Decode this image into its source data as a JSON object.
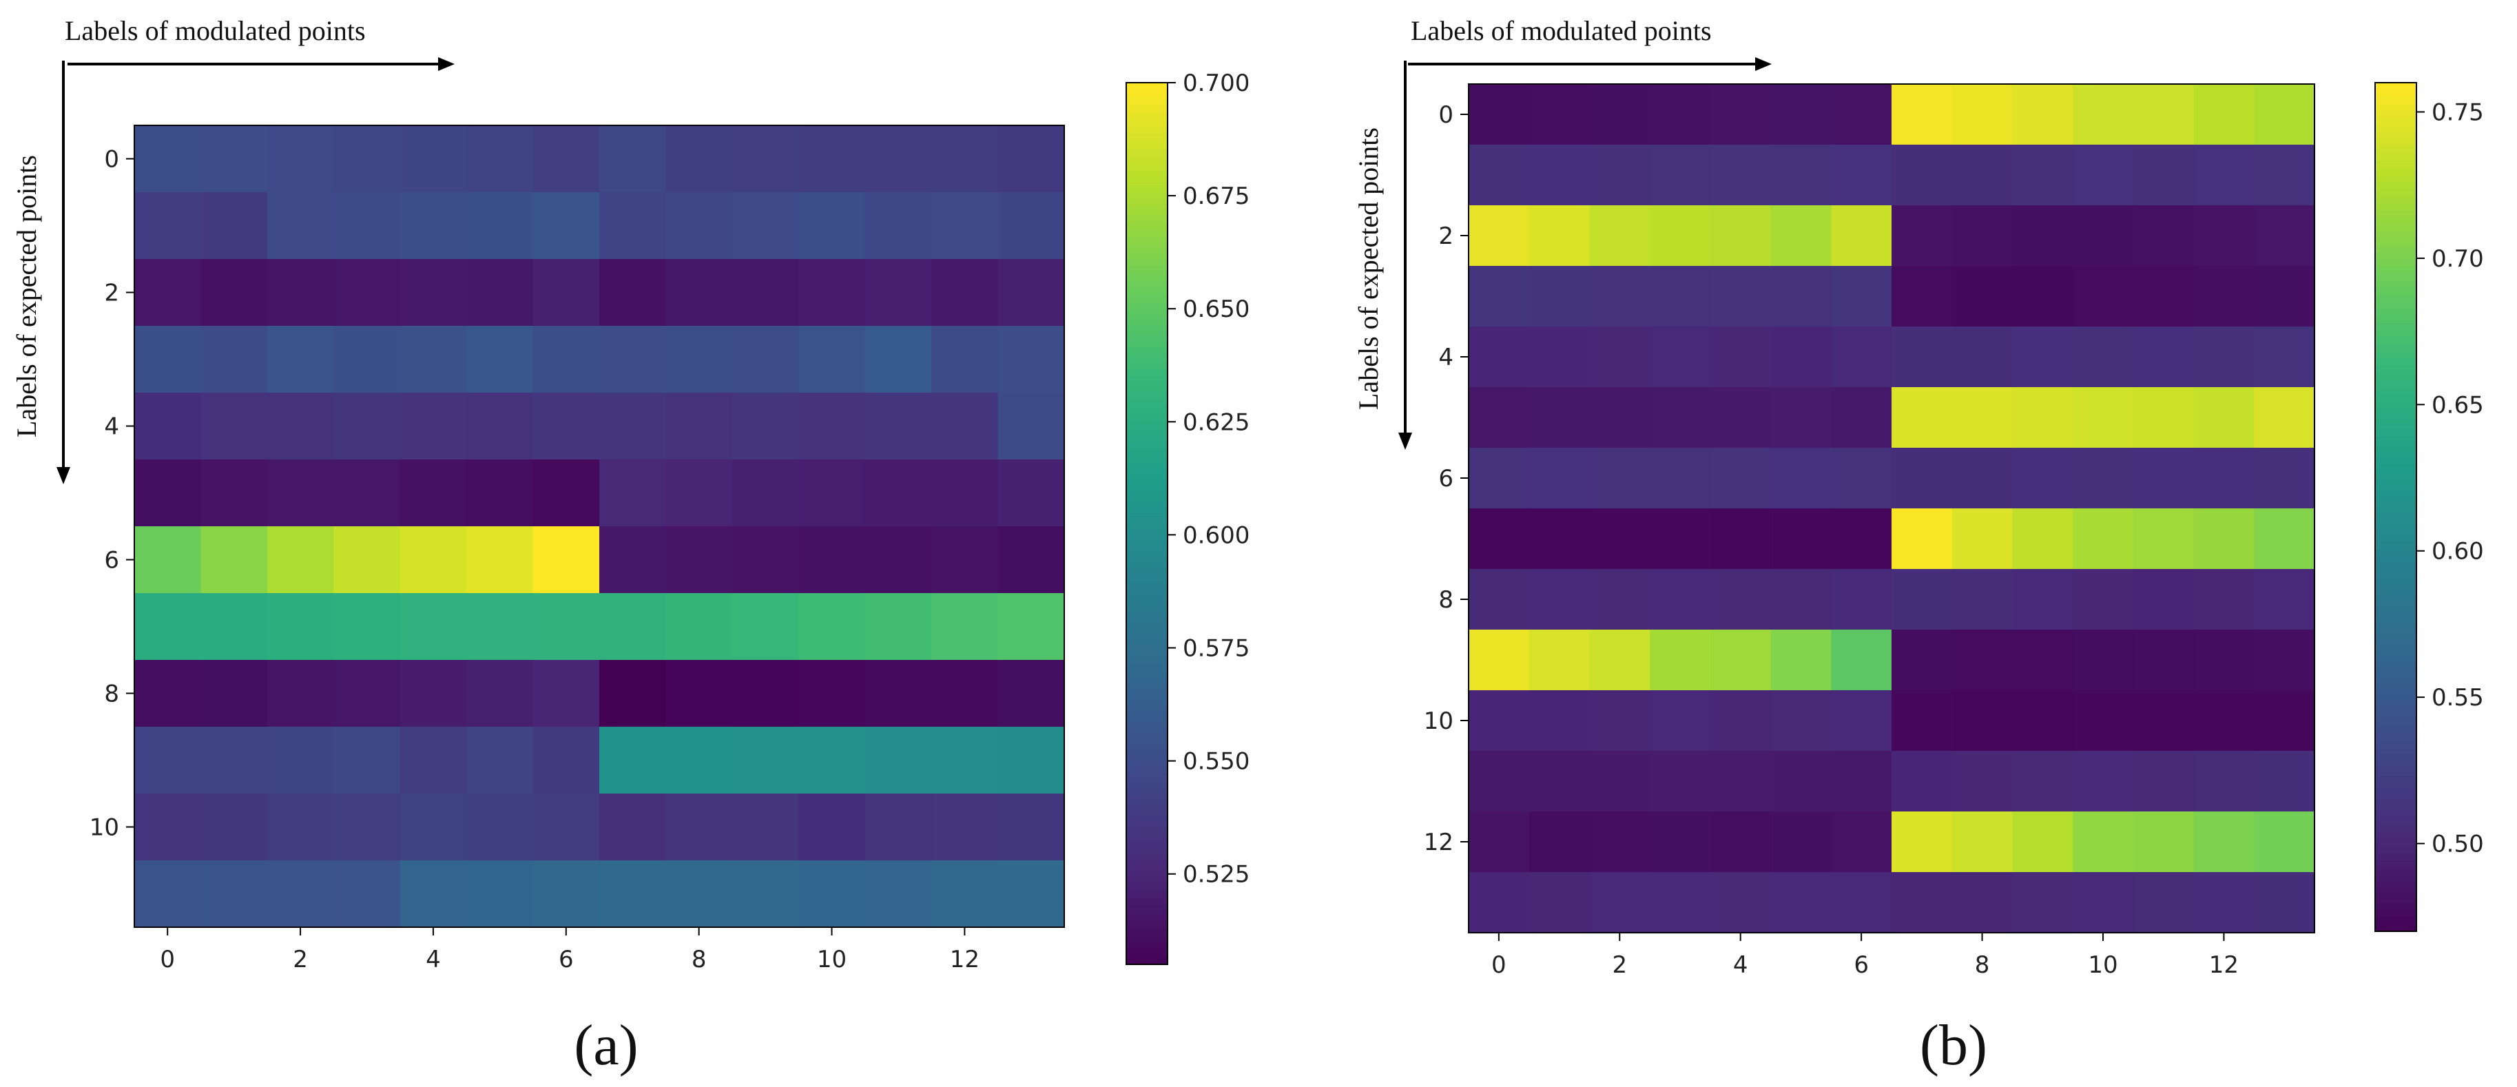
{
  "figure": {
    "panels": [
      {
        "label_open": "(",
        "label_letter": "a",
        "label_close": ")"
      },
      {
        "label_open": "(",
        "label_letter": "b",
        "label_close": ")"
      }
    ]
  },
  "colormap": [
    "#440154",
    "#482878",
    "#3e4989",
    "#31688e",
    "#26828e",
    "#1f9e89",
    "#35b779",
    "#6ece58",
    "#b5de2b",
    "#fde725"
  ],
  "chart_data": [
    {
      "type": "heatmap",
      "panel": "a",
      "xlabel": "Labels of modulated points",
      "ylabel": "Labels of expected points",
      "x_ticks": [
        0,
        2,
        4,
        6,
        8,
        10,
        12
      ],
      "y_ticks": [
        0,
        2,
        4,
        6,
        8,
        10
      ],
      "x_range": [
        0,
        13
      ],
      "y_range": [
        0,
        11
      ],
      "colorbar": {
        "min": 0.505,
        "max": 0.7,
        "ticks": [
          0.525,
          0.55,
          0.575,
          0.6,
          0.625,
          0.65,
          0.675,
          0.7
        ],
        "tick_labels": [
          "0.525",
          "0.550",
          "0.575",
          "0.600",
          "0.625",
          "0.650",
          "0.675",
          "0.700"
        ]
      },
      "values": [
        [
          0.552,
          0.551,
          0.549,
          0.547,
          0.546,
          0.545,
          0.541,
          0.548,
          0.542,
          0.541,
          0.54,
          0.54,
          0.54,
          0.538
        ],
        [
          0.54,
          0.538,
          0.549,
          0.55,
          0.552,
          0.553,
          0.556,
          0.545,
          0.547,
          0.549,
          0.552,
          0.548,
          0.549,
          0.546
        ],
        [
          0.517,
          0.514,
          0.516,
          0.517,
          0.519,
          0.518,
          0.522,
          0.514,
          0.518,
          0.518,
          0.52,
          0.521,
          0.519,
          0.522
        ],
        [
          0.553,
          0.55,
          0.557,
          0.553,
          0.554,
          0.558,
          0.552,
          0.551,
          0.552,
          0.551,
          0.556,
          0.56,
          0.55,
          0.551
        ],
        [
          0.53,
          0.534,
          0.533,
          0.535,
          0.534,
          0.533,
          0.536,
          0.535,
          0.533,
          0.536,
          0.534,
          0.536,
          0.535,
          0.55
        ],
        [
          0.513,
          0.515,
          0.517,
          0.517,
          0.514,
          0.512,
          0.51,
          0.527,
          0.525,
          0.522,
          0.521,
          0.52,
          0.52,
          0.523
        ],
        [
          0.655,
          0.665,
          0.675,
          0.683,
          0.688,
          0.692,
          0.7,
          0.518,
          0.516,
          0.515,
          0.514,
          0.514,
          0.515,
          0.513
        ],
        [
          0.625,
          0.625,
          0.627,
          0.628,
          0.63,
          0.63,
          0.631,
          0.631,
          0.633,
          0.635,
          0.638,
          0.64,
          0.643,
          0.645
        ],
        [
          0.512,
          0.513,
          0.516,
          0.517,
          0.52,
          0.522,
          0.525,
          0.505,
          0.508,
          0.508,
          0.509,
          0.51,
          0.51,
          0.513
        ],
        [
          0.545,
          0.545,
          0.546,
          0.548,
          0.54,
          0.545,
          0.538,
          0.605,
          0.605,
          0.603,
          0.603,
          0.601,
          0.601,
          0.6
        ],
        [
          0.535,
          0.537,
          0.54,
          0.541,
          0.544,
          0.542,
          0.54,
          0.532,
          0.535,
          0.536,
          0.53,
          0.535,
          0.535,
          0.537
        ],
        [
          0.555,
          0.556,
          0.556,
          0.555,
          0.567,
          0.568,
          0.569,
          0.571,
          0.571,
          0.57,
          0.568,
          0.567,
          0.57,
          0.572
        ]
      ]
    },
    {
      "type": "heatmap",
      "panel": "b",
      "xlabel": "Labels of modulated points",
      "ylabel": "Labels of expected points",
      "x_ticks": [
        0,
        2,
        4,
        6,
        8,
        10,
        12
      ],
      "y_ticks": [
        0,
        2,
        4,
        6,
        8,
        10,
        12
      ],
      "x_range": [
        0,
        13
      ],
      "y_range": [
        0,
        13
      ],
      "colorbar": {
        "min": 0.47,
        "max": 0.76,
        "ticks": [
          0.5,
          0.55,
          0.6,
          0.65,
          0.7,
          0.75
        ],
        "tick_labels": [
          "0.50",
          "0.55",
          "0.60",
          "0.65",
          "0.70",
          "0.75"
        ]
      },
      "values": [
        [
          0.48,
          0.481,
          0.482,
          0.483,
          0.485,
          0.486,
          0.484,
          0.756,
          0.752,
          0.747,
          0.738,
          0.738,
          0.73,
          0.725
        ],
        [
          0.51,
          0.509,
          0.51,
          0.512,
          0.513,
          0.512,
          0.511,
          0.508,
          0.508,
          0.51,
          0.511,
          0.51,
          0.511,
          0.512
        ],
        [
          0.75,
          0.745,
          0.735,
          0.732,
          0.729,
          0.722,
          0.737,
          0.485,
          0.483,
          0.482,
          0.482,
          0.483,
          0.485,
          0.488
        ],
        [
          0.515,
          0.514,
          0.513,
          0.512,
          0.513,
          0.512,
          0.515,
          0.478,
          0.477,
          0.477,
          0.478,
          0.479,
          0.481,
          0.482
        ],
        [
          0.5,
          0.5,
          0.501,
          0.502,
          0.501,
          0.5,
          0.502,
          0.508,
          0.508,
          0.509,
          0.51,
          0.509,
          0.51,
          0.512
        ],
        [
          0.488,
          0.489,
          0.489,
          0.49,
          0.491,
          0.492,
          0.49,
          0.745,
          0.745,
          0.742,
          0.74,
          0.739,
          0.735,
          0.743
        ],
        [
          0.512,
          0.511,
          0.512,
          0.512,
          0.513,
          0.511,
          0.512,
          0.508,
          0.508,
          0.509,
          0.51,
          0.509,
          0.509,
          0.51
        ],
        [
          0.475,
          0.475,
          0.476,
          0.476,
          0.475,
          0.476,
          0.475,
          0.758,
          0.745,
          0.733,
          0.722,
          0.718,
          0.715,
          0.705
        ],
        [
          0.505,
          0.504,
          0.503,
          0.502,
          0.503,
          0.503,
          0.504,
          0.508,
          0.506,
          0.504,
          0.501,
          0.5,
          0.501,
          0.502
        ],
        [
          0.752,
          0.743,
          0.738,
          0.72,
          0.718,
          0.705,
          0.685,
          0.48,
          0.479,
          0.479,
          0.48,
          0.48,
          0.48,
          0.481
        ],
        [
          0.5,
          0.5,
          0.501,
          0.502,
          0.501,
          0.503,
          0.502,
          0.476,
          0.475,
          0.475,
          0.476,
          0.475,
          0.476,
          0.476
        ],
        [
          0.49,
          0.49,
          0.491,
          0.492,
          0.492,
          0.491,
          0.49,
          0.5,
          0.501,
          0.503,
          0.504,
          0.505,
          0.506,
          0.508
        ],
        [
          0.485,
          0.48,
          0.481,
          0.482,
          0.481,
          0.482,
          0.484,
          0.745,
          0.738,
          0.728,
          0.712,
          0.71,
          0.702,
          0.698
        ],
        [
          0.5,
          0.501,
          0.502,
          0.502,
          0.503,
          0.502,
          0.502,
          0.501,
          0.501,
          0.503,
          0.504,
          0.506,
          0.507,
          0.508
        ]
      ]
    }
  ]
}
